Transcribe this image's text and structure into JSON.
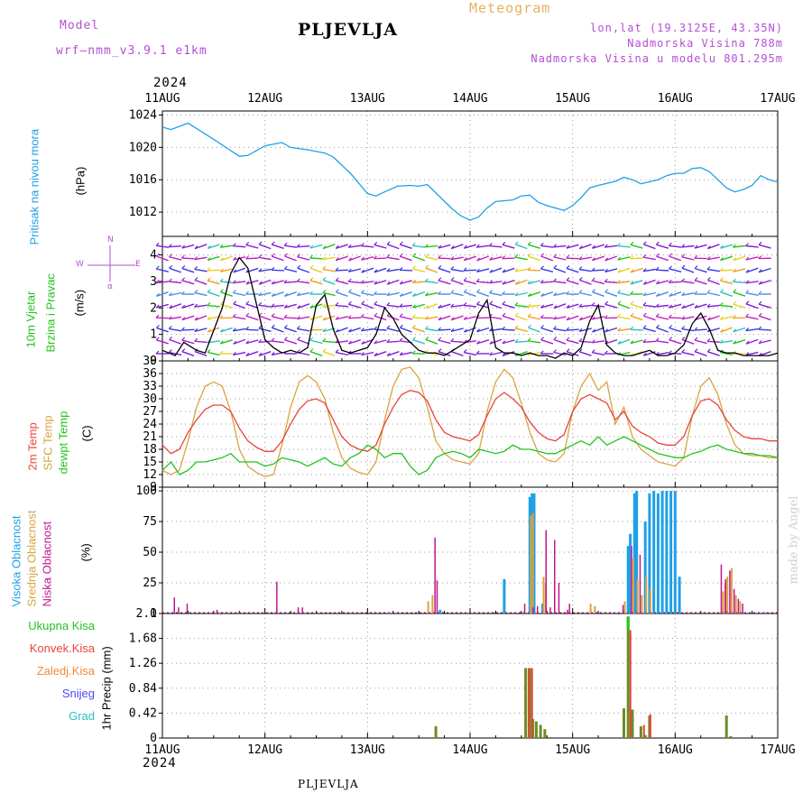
{
  "header": {
    "model_label": "Model",
    "model_name": "wrf—nmm_v3.9.1  e1km",
    "station": "PLJEVLJA",
    "meteogram": "Meteogram",
    "lonlat": "lon,lat (19.3125E, 43.35N)",
    "elevation": "Nadmorska Visina 788m",
    "model_elevation": "Nadmorska Visina u modelu 801.295m",
    "year_top": "2024",
    "year_bottom": "2024",
    "footer_station": "PLJEVLJA",
    "watermark": "made by Angel"
  },
  "colors": {
    "pressure": "#1ea0e6",
    "temp2m": "#e8443c",
    "sfc": "#d9a441",
    "dewpt": "#22c41c",
    "high_cloud": "#1ea0e6",
    "mid_cloud": "#d9a441",
    "low_cloud": "#c0168c",
    "total_precip": "#22c41c",
    "conv_precip": "#e8443c",
    "frozen": "#f08c3c",
    "snow": "#4a4af0",
    "hail": "#2ec0c0",
    "label_purple": "#b44ed4",
    "meteogram_orange": "#e8b060"
  },
  "chart_data": [
    {
      "type": "line",
      "panel": "pressure",
      "ylabel_left": "Pritisak na nivou mora",
      "ylabel_unit": "(hPa)",
      "ylim": [
        1009,
        1024.5
      ],
      "yticks": [
        "1012",
        "1016",
        "1020",
        "1024"
      ],
      "xlim": [
        0,
        144
      ],
      "xtick_labels": [
        "11AUG",
        "12AUG",
        "13AUG",
        "14AUG",
        "15AUG",
        "16AUG",
        "17AUG"
      ],
      "grid": true,
      "series": [
        {
          "x": [
            0,
            2,
            6,
            12,
            18,
            20,
            22,
            24,
            28,
            30,
            34,
            38,
            40,
            44,
            48,
            50,
            52,
            55,
            58,
            60,
            62,
            68,
            70,
            72,
            74,
            76,
            78,
            82,
            84,
            86,
            88,
            90,
            94,
            96,
            98,
            100,
            102,
            106,
            108,
            110,
            112,
            116,
            118,
            120,
            122,
            124,
            126,
            128,
            132,
            134,
            136,
            138,
            140,
            142,
            144
          ],
          "y": [
            1022.5,
            1022.2,
            1023.0,
            1021.0,
            1018.9,
            1019.0,
            1019.6,
            1020.2,
            1020.6,
            1020.0,
            1019.7,
            1019.3,
            1018.8,
            1016.8,
            1014.3,
            1014.0,
            1014.5,
            1015.2,
            1015.3,
            1015.2,
            1015.4,
            1012.3,
            1011.5,
            1011.0,
            1011.4,
            1012.5,
            1013.3,
            1013.5,
            1014.0,
            1014.1,
            1013.2,
            1012.8,
            1012.2,
            1012.8,
            1013.8,
            1015.0,
            1015.3,
            1015.8,
            1016.3,
            1016.0,
            1015.5,
            1016.0,
            1016.5,
            1016.8,
            1016.8,
            1017.4,
            1017.5,
            1017.0,
            1015.0,
            1014.5,
            1014.8,
            1015.3,
            1016.5,
            1016.0,
            1015.7
          ]
        }
      ]
    },
    {
      "type": "line",
      "panel": "wind",
      "ylabel_left_1": "10m Vjetar",
      "ylabel_left_2": "Brzina i Pravac",
      "ylabel_unit": "(m/s)",
      "compass_w": "W",
      "compass_e": "E",
      "compass_n": "N",
      "compass_s": "α",
      "ylim": [
        0,
        4.7
      ],
      "yticks": [
        "0",
        "1",
        "2",
        "3",
        "4"
      ],
      "xlim": [
        0,
        144
      ],
      "series": [
        {
          "name": "speed",
          "x": [
            0,
            3,
            5,
            8,
            10,
            14,
            16,
            18,
            20,
            24,
            26,
            28,
            30,
            32,
            34,
            36,
            38,
            40,
            42,
            44,
            46,
            48,
            50,
            52,
            54,
            56,
            58,
            60,
            62,
            64,
            66,
            68,
            70,
            72,
            74,
            76,
            78,
            80,
            82,
            84,
            86,
            88,
            90,
            92,
            94,
            96,
            98,
            100,
            102,
            104,
            106,
            108,
            110,
            112,
            114,
            116,
            118,
            120,
            122,
            124,
            126,
            128,
            130,
            132,
            134,
            136,
            138,
            140,
            142,
            144
          ],
          "y": [
            0.4,
            0.2,
            0.7,
            0.4,
            0.3,
            2.0,
            3.3,
            3.9,
            3.5,
            0.8,
            0.5,
            0.3,
            0.4,
            0.3,
            0.5,
            2.1,
            2.5,
            1.2,
            0.4,
            0.3,
            0.4,
            0.5,
            1.0,
            2.0,
            1.6,
            1.0,
            0.7,
            0.4,
            0.3,
            0.3,
            0.2,
            0.4,
            0.6,
            0.8,
            1.8,
            2.3,
            0.5,
            0.3,
            0.3,
            0.2,
            0.3,
            0.2,
            0.2,
            0.1,
            0.3,
            0.2,
            0.5,
            1.5,
            2.1,
            0.6,
            0.3,
            0.2,
            0.2,
            0.3,
            0.4,
            0.2,
            0.2,
            0.3,
            0.6,
            1.4,
            1.8,
            1.2,
            0.4,
            0.3,
            0.3,
            0.2,
            0.2,
            0.2,
            0.2,
            0.3
          ]
        }
      ]
    },
    {
      "type": "line",
      "panel": "temperature",
      "ylabel_temp": "2m Temp",
      "ylabel_sfc": "SFC Temp",
      "ylabel_dew": "dewpt Temp",
      "ylabel_unit": "(C)",
      "ylim": [
        9,
        39
      ],
      "yticks": [
        "9",
        "12",
        "15",
        "18",
        "21",
        "24",
        "27",
        "30",
        "33",
        "36",
        "39"
      ],
      "xlim": [
        0,
        144
      ],
      "series": [
        {
          "name": "2m",
          "x": [
            0,
            2,
            4,
            6,
            8,
            10,
            12,
            14,
            16,
            18,
            20,
            22,
            24,
            26,
            28,
            30,
            32,
            34,
            36,
            38,
            40,
            42,
            44,
            46,
            48,
            50,
            52,
            54,
            56,
            58,
            60,
            62,
            64,
            66,
            68,
            70,
            72,
            74,
            76,
            78,
            80,
            82,
            84,
            86,
            88,
            90,
            92,
            94,
            96,
            98,
            100,
            102,
            104,
            106,
            108,
            110,
            112,
            114,
            116,
            118,
            120,
            122,
            124,
            126,
            128,
            130,
            132,
            134,
            136,
            138,
            140,
            142,
            144
          ],
          "y": [
            19,
            17,
            18,
            22,
            25,
            27.5,
            28.5,
            28.5,
            27,
            23,
            20,
            18.5,
            17.5,
            17.5,
            20,
            24,
            27.5,
            29.5,
            30,
            29,
            25,
            21,
            19,
            18,
            17.5,
            19,
            24,
            28,
            31,
            32,
            31.5,
            29.5,
            25,
            22,
            21,
            20.5,
            20,
            21.5,
            26,
            30,
            31.5,
            30,
            28,
            24.5,
            22,
            20.5,
            20,
            21.5,
            27,
            30,
            31,
            30,
            29,
            25,
            27,
            23.5,
            22,
            21,
            19.5,
            19,
            19,
            21,
            26,
            29.5,
            30,
            28.5,
            25,
            22.5,
            21,
            20.5,
            20.5,
            20,
            20
          ]
        },
        {
          "name": "SFC",
          "x": [
            0,
            2,
            4,
            6,
            8,
            10,
            12,
            14,
            16,
            18,
            20,
            22,
            24,
            26,
            28,
            30,
            32,
            34,
            36,
            38,
            40,
            42,
            44,
            46,
            48,
            50,
            52,
            54,
            56,
            58,
            60,
            62,
            64,
            66,
            68,
            70,
            72,
            74,
            76,
            78,
            80,
            82,
            84,
            86,
            88,
            90,
            92,
            94,
            96,
            98,
            100,
            102,
            104,
            106,
            108,
            110,
            112,
            114,
            116,
            118,
            120,
            122,
            124,
            126,
            128,
            130,
            132,
            134,
            136,
            138,
            140,
            142,
            144
          ],
          "y": [
            13,
            12,
            13,
            20,
            28,
            33,
            34,
            33,
            27,
            18,
            14,
            12.5,
            11.5,
            12,
            19,
            28,
            34,
            35.5,
            34,
            30,
            22,
            16,
            13.5,
            12.5,
            12,
            15,
            25,
            33,
            37,
            37.5,
            35,
            28,
            20,
            17,
            15.5,
            15,
            14.5,
            17,
            27,
            34,
            37,
            35,
            29,
            22,
            17,
            15.5,
            15,
            17,
            27,
            33,
            36,
            32,
            34,
            24,
            28,
            21,
            18,
            16.5,
            15,
            14.5,
            14,
            16,
            26,
            33,
            35,
            31,
            24,
            19,
            17,
            16.5,
            16.5,
            16,
            16
          ]
        },
        {
          "name": "dewpt",
          "x": [
            0,
            2,
            4,
            6,
            8,
            10,
            12,
            14,
            16,
            18,
            20,
            22,
            24,
            26,
            28,
            30,
            32,
            34,
            36,
            38,
            40,
            42,
            44,
            46,
            48,
            50,
            52,
            54,
            56,
            58,
            60,
            62,
            64,
            66,
            68,
            70,
            72,
            74,
            76,
            78,
            80,
            82,
            84,
            86,
            88,
            90,
            92,
            94,
            96,
            98,
            100,
            102,
            104,
            106,
            108,
            110,
            112,
            114,
            116,
            118,
            120,
            122,
            124,
            126,
            128,
            130,
            132,
            134,
            136,
            138,
            140,
            142,
            144
          ],
          "y": [
            13,
            15,
            12,
            13,
            15,
            15,
            15.5,
            16,
            17,
            15,
            15,
            15,
            14,
            14.5,
            16,
            15.5,
            15,
            14,
            15,
            16,
            14.5,
            14,
            16,
            17,
            19,
            18,
            16,
            17,
            17,
            14,
            12,
            13,
            16,
            17,
            17.5,
            17,
            16,
            18,
            17.5,
            17,
            17.5,
            19,
            18,
            18,
            17.5,
            17,
            17,
            18,
            19,
            20,
            19,
            21,
            19,
            20,
            21,
            20,
            19,
            18,
            17,
            16.5,
            16,
            16,
            17,
            17.5,
            18.5,
            19,
            18,
            17.5,
            17,
            17,
            16.5,
            16.5,
            16
          ]
        }
      ]
    },
    {
      "type": "bar",
      "panel": "cloud",
      "ylabel_high": "Visoka Oblacnost",
      "ylabel_mid": "Srednja Oblacnost",
      "ylabel_low": "Niska Oblacnost",
      "ylabel_unit": "(%)",
      "ylim": [
        0,
        103
      ],
      "yticks": [
        "0",
        "25",
        "50",
        "75",
        "100"
      ],
      "xlim": [
        0,
        144
      ],
      "series": [
        {
          "name": "high",
          "x": [
            22,
            53,
            65,
            80,
            86,
            86.5,
            87,
            89,
            109,
            109.5,
            110.5,
            111,
            113,
            114,
            115,
            116,
            117,
            118,
            119,
            120,
            121,
            141
          ],
          "y": [
            0,
            1,
            3,
            28,
            95,
            98,
            98,
            8,
            55,
            65,
            98,
            100,
            75,
            98,
            100,
            98,
            100,
            100,
            100,
            100,
            30,
            1
          ]
        },
        {
          "name": "mid",
          "x": [
            62,
            63,
            86,
            86.5,
            89,
            89.5,
            100,
            101,
            108,
            110,
            111,
            112,
            113,
            114,
            131,
            131.5,
            132,
            133,
            134,
            135
          ],
          "y": [
            10,
            15,
            80,
            82,
            30,
            25,
            8,
            6,
            10,
            45,
            28,
            15,
            30,
            20,
            18,
            25,
            30,
            37,
            15,
            10
          ]
        },
        {
          "name": "low",
          "x": [
            3,
            4,
            6,
            13,
            27,
            32,
            33,
            64,
            64.5,
            78,
            85,
            87,
            88,
            90,
            91,
            92,
            93,
            95,
            95.5,
            108,
            110,
            112,
            131,
            132,
            133,
            134,
            135,
            136
          ],
          "y": [
            13,
            5,
            8,
            3,
            26,
            5,
            5,
            62,
            27,
            1,
            8,
            5,
            6,
            68,
            5,
            60,
            25,
            3,
            8,
            7,
            55,
            48,
            40,
            28,
            35,
            20,
            12,
            8
          ]
        }
      ]
    },
    {
      "type": "bar",
      "panel": "precip",
      "legend": [
        "Ukupna Kisa",
        "Konvek.Kisa",
        "Zaledj.Kisa",
        "Snijeg",
        "Grad"
      ],
      "ylabel_unit": "1hr Precip (mm)",
      "ylim": [
        0,
        2.1
      ],
      "yticks": [
        "0",
        "0.42",
        "0.84",
        "1.26",
        "1.68",
        "2.1"
      ],
      "xlim": [
        0,
        144
      ],
      "xtick_labels": [
        "11AUG",
        "12AUG",
        "13AUG",
        "14AUG",
        "15AUG",
        "16AUG",
        "17AUG"
      ],
      "series": [
        {
          "name": "total",
          "x": [
            64,
            85,
            86,
            86.7,
            87.5,
            88.5,
            89.5,
            108,
            109,
            110,
            112,
            113,
            114,
            132,
            133
          ],
          "y": [
            0.2,
            1.18,
            1.18,
            0.32,
            0.28,
            0.22,
            0.15,
            0.5,
            2.05,
            0.48,
            0.2,
            0.05,
            0.38,
            0.38,
            0.03
          ]
        },
        {
          "name": "convective",
          "x": [
            85.5,
            86.3,
            109.3,
            112.5,
            114
          ],
          "y": [
            1.18,
            1.18,
            1.82,
            0.22,
            0.4
          ]
        }
      ]
    }
  ]
}
